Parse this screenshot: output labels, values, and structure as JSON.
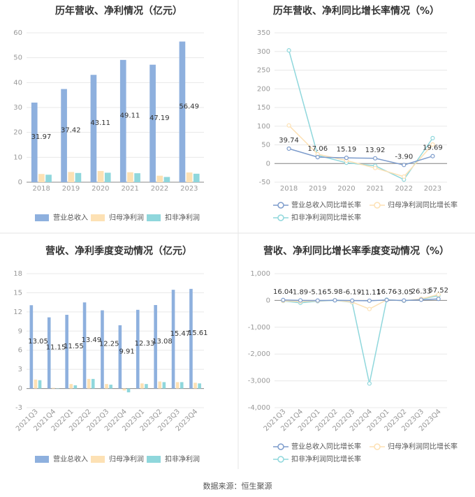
{
  "source_text": "数据来源：恒生聚源",
  "colors": {
    "revenue": "#8eb0de",
    "net": "#fde1b4",
    "deduct": "#8fd7dc",
    "axis": "#999999",
    "grid": "#e8e8e8",
    "divider": "#e6e6e6"
  },
  "chart_data": [
    {
      "type": "bar",
      "title": "历年营收、净利情况（亿元）",
      "categories": [
        "2018",
        "2019",
        "2020",
        "2021",
        "2022",
        "2023"
      ],
      "series": [
        {
          "name": "营业总收入",
          "values": [
            31.97,
            37.42,
            43.11,
            49.11,
            47.19,
            56.49
          ]
        },
        {
          "name": "归母净利润",
          "values": [
            3.3,
            4.1,
            4.5,
            4.0,
            2.6,
            3.9
          ]
        },
        {
          "name": "扣非净利润",
          "values": [
            3.0,
            3.7,
            3.8,
            3.6,
            2.1,
            3.4
          ]
        }
      ],
      "data_labels": [
        "31.97",
        "37.42",
        "43.11",
        "49.11",
        "47.19",
        "56.49"
      ],
      "ylim": [
        0,
        60
      ],
      "yticks": [
        0,
        10,
        20,
        30,
        40,
        50,
        60
      ],
      "grid": true,
      "legend": "bottom"
    },
    {
      "type": "line",
      "title": "历年营收、净利同比增长率情况（%）",
      "categories": [
        "2018",
        "2019",
        "2020",
        "2021",
        "2022",
        "2023"
      ],
      "series": [
        {
          "name": "营业总收入同比增长率",
          "values": [
            39.74,
            17.06,
            15.19,
            13.92,
            -3.9,
            19.69
          ]
        },
        {
          "name": "归母净利润同比增长率",
          "values": [
            102,
            25,
            8,
            -12,
            -35,
            51
          ]
        },
        {
          "name": "扣非净利润同比增长率",
          "values": [
            303,
            22,
            2,
            -6,
            -43,
            68
          ]
        }
      ],
      "data_labels": [
        "39.74",
        "17.06",
        "15.19",
        "13.92",
        "-3.90",
        "19.69"
      ],
      "ylim": [
        -50,
        350
      ],
      "yticks": [
        -50,
        0,
        50,
        100,
        150,
        200,
        250,
        300,
        350
      ],
      "grid": true,
      "legend": "bottom"
    },
    {
      "type": "bar",
      "title": "营收、净利季度变动情况（亿元）",
      "categories": [
        "2021Q3",
        "2021Q4",
        "2022Q1",
        "2022Q2",
        "2022Q3",
        "2022Q4",
        "2023Q1",
        "2023Q2",
        "2023Q3",
        "2023Q4"
      ],
      "series": [
        {
          "name": "营业总收入",
          "values": [
            13.05,
            11.15,
            11.55,
            13.49,
            12.25,
            9.91,
            12.33,
            13.08,
            15.47,
            15.61
          ]
        },
        {
          "name": "归母净利润",
          "values": [
            1.4,
            0.1,
            0.7,
            1.5,
            0.7,
            -0.3,
            0.8,
            1.1,
            1.0,
            0.9
          ]
        },
        {
          "name": "扣非净利润",
          "values": [
            1.3,
            0.0,
            0.5,
            1.5,
            0.6,
            -0.6,
            0.7,
            1.0,
            1.0,
            0.8
          ]
        }
      ],
      "data_labels": [
        "13.05",
        "11.15",
        "11.55",
        "13.49",
        "12.25",
        "9.91",
        "12.33",
        "13.08",
        "15.47",
        "15.61"
      ],
      "ylim": [
        -3,
        18
      ],
      "yticks": [
        -3,
        0,
        3,
        6,
        9,
        12,
        15,
        18
      ],
      "grid": true,
      "legend": "bottom"
    },
    {
      "type": "line",
      "title": "营收、净利同比增长率季度变动情况（%）",
      "categories": [
        "2021Q3",
        "2021Q4",
        "2022Q1",
        "2022Q2",
        "2022Q3",
        "2022Q4",
        "2023Q1",
        "2023Q2",
        "2023Q3",
        "2023Q4"
      ],
      "series": [
        {
          "name": "营业总收入同比增长率",
          "values": [
            16.04,
            1.89,
            -5.16,
            5.98,
            -6.19,
            -11.11,
            16.76,
            -3.05,
            26.33,
            57.52
          ]
        },
        {
          "name": "归母净利润同比增长率",
          "values": [
            -15,
            -40,
            -20,
            10,
            -60,
            -320,
            20,
            -10,
            60,
            220
          ]
        },
        {
          "name": "扣非净利润同比增长率",
          "values": [
            -20,
            -90,
            -30,
            5,
            -70,
            -3100,
            30,
            -15,
            50,
            180
          ]
        }
      ],
      "data_labels": [
        "16.04",
        "1.89",
        "-5.16",
        "5.98",
        "-6.19",
        "-11.11",
        "16.76",
        "-3.05",
        "26.33",
        "57.52"
      ],
      "ylim": [
        -4000,
        1000
      ],
      "yticks": [
        -4000,
        -3000,
        -2000,
        -1000,
        0,
        1000
      ],
      "ytick_labels": [
        "-4,000",
        "-3,000",
        "-2,000",
        "-1,000",
        "0",
        "1,000"
      ],
      "grid": true,
      "legend": "bottom"
    }
  ]
}
